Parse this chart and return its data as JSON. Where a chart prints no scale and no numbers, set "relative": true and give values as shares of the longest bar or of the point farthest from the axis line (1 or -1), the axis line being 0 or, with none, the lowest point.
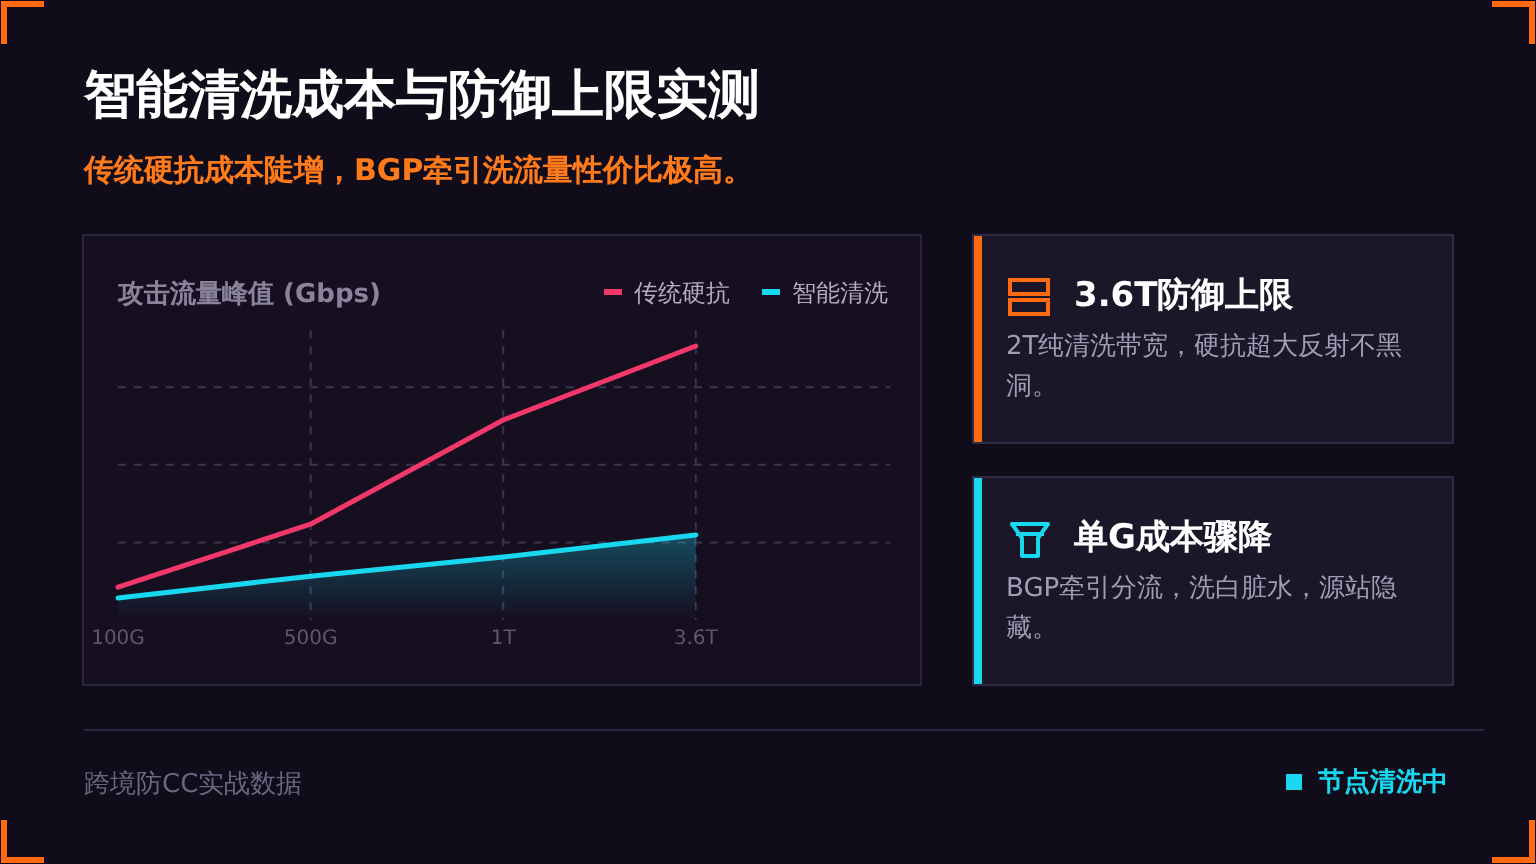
{
  "chart_data": [
    {
      "type": "line",
      "title": "智能清洗成本与防御上限实测",
      "subtitle": "传统硬抗成本陡增，BGP牵引洗流量性价比极高。",
      "ylabel": "攻击流量峰值 (Gbps)",
      "relative": true,
      "grid": true,
      "legend": "top right",
      "categories": [
        "100G",
        "500G",
        "1T",
        "3.6T"
      ],
      "series": [
        {
          "name": "传统硬抗",
          "color": "#f0386b",
          "values": [
            0.12,
            0.35,
            0.73,
            1
          ]
        },
        {
          "name": "智能清洗",
          "type": "area",
          "color": "#18d8f0",
          "values": [
            0.08,
            0.16,
            0.23,
            0.31
          ]
        }
      ],
      "annotations": [
        "跨境防CC实战数据",
        "节点清洗中"
      ]
    },
    {
      "type": "other",
      "title": "3.6T防御上限",
      "subtitle": "2T纯清洗带宽，硬抗超大反射不黑洞。"
    },
    {
      "type": "other",
      "title": "单G成本骤降",
      "subtitle": "BGP牵引分流，洗白脏水，源站隐藏。"
    }
  ]
}
